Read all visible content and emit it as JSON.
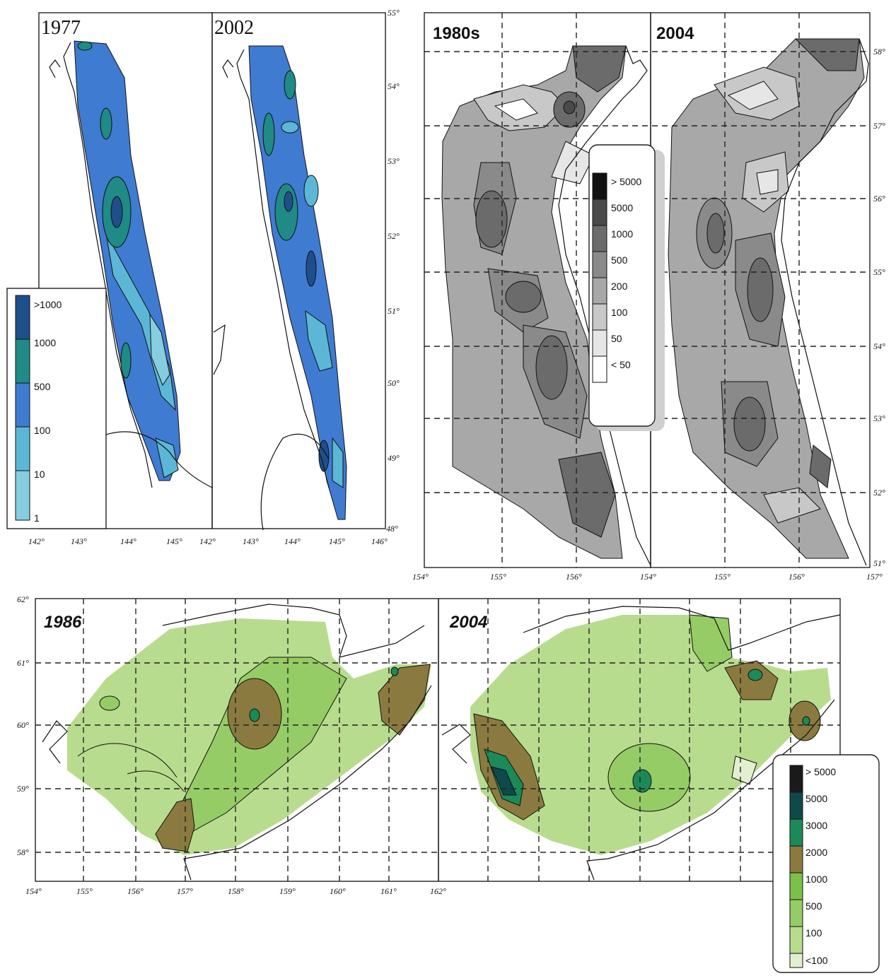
{
  "figures": {
    "sakhalin": {
      "panels": [
        "1977",
        "2002"
      ],
      "legend": [
        ">1000",
        "1000",
        "500",
        "100",
        "10",
        "1"
      ],
      "colors": [
        "#1f4e8c",
        "#1f8a86",
        "#3f7bd0",
        "#5cb7d6",
        "#86cde0"
      ],
      "lon_ticks_left": [
        "142°",
        "143°",
        "144°",
        "145°"
      ],
      "lon_ticks_right": [
        "142°",
        "143°",
        "144°",
        "145°",
        "146°"
      ],
      "lat_ticks": [
        "55°",
        "54°",
        "53°",
        "52°",
        "51°",
        "50°",
        "49°",
        "48°"
      ]
    },
    "kamchatka": {
      "panels": [
        "1980s",
        "2004"
      ],
      "legend": [
        "> 5000",
        "5000",
        "1000",
        "500",
        "200",
        "100",
        "50",
        "< 50"
      ],
      "colors": [
        "#111111",
        "#4a4a4a",
        "#6b6b6b",
        "#8a8a8a",
        "#a8a8a8",
        "#c8c8c8",
        "#e6e6e6",
        "#ffffff"
      ],
      "lon_ticks": [
        "154°",
        "155°",
        "156°",
        "154°",
        "155°",
        "156°",
        "157°"
      ],
      "lat_ticks": [
        "58°",
        "57°",
        "56°",
        "55°",
        "54°",
        "53°",
        "52°",
        "51°"
      ]
    },
    "shelikhov": {
      "panels": [
        "1986",
        "2004"
      ],
      "legend": [
        "> 5000",
        "5000",
        "3000",
        "2000",
        "1000",
        "500",
        "100",
        "<100"
      ],
      "colors": [
        "#1a1a1a",
        "#0f4a4a",
        "#1c8a58",
        "#8b7a40",
        "#7cc04a",
        "#96cc66",
        "#b8dc8e",
        "#e2f0d0"
      ],
      "lon_ticks": [
        "154°",
        "155°",
        "156°",
        "157°",
        "158°",
        "159°",
        "160°",
        "161°",
        "162°"
      ],
      "lat_ticks": [
        "62°",
        "61°",
        "60°",
        "59°",
        "58°"
      ]
    }
  }
}
